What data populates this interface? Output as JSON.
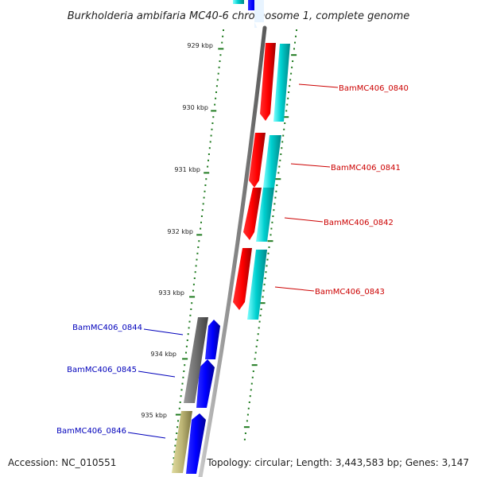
{
  "title": "Burkholderia ambifaria MC40-6 chromosome 1, complete genome",
  "footer": {
    "accession": "Accession: NC_010551",
    "summary": "Topology: circular; Length: 3,443,583 bp; Genes: 3,147"
  },
  "scale_labels": [
    "929 kbp",
    "930 kbp",
    "931 kbp",
    "932 kbp",
    "933 kbp",
    "934 kbp",
    "935 kbp"
  ],
  "genes": [
    {
      "label": "BamMC406_0840",
      "color": "#cc0000"
    },
    {
      "label": "BamMC406_0841",
      "color": "#cc0000"
    },
    {
      "label": "BamMC406_0842",
      "color": "#cc0000"
    },
    {
      "label": "BamMC406_0843",
      "color": "#cc0000"
    },
    {
      "label": "BamMC406_0844",
      "color": "#0000bb"
    },
    {
      "label": "BamMC406_0845",
      "color": "#0000bb"
    },
    {
      "label": "BamMC406_0846",
      "color": "#0000bb"
    }
  ],
  "colors": {
    "backbone": "#8a8a8a",
    "ticks": "#1f7a1f",
    "forward_gene": "#ff0000",
    "reverse_gene": "#0000ff",
    "forward_cds": "#00c8c8",
    "gray_cds": "#6e6e6e",
    "tan_cds": "#b8b070"
  }
}
